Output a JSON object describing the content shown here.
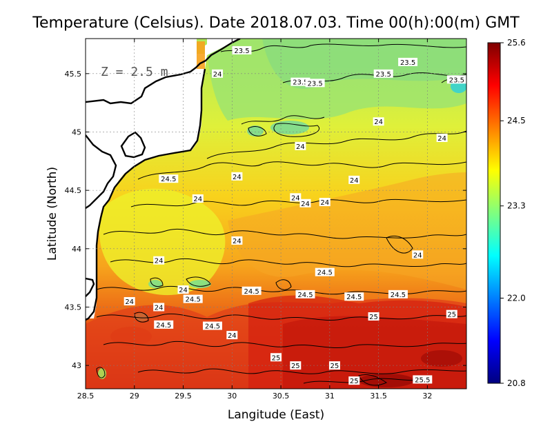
{
  "title": "Temperature (Celsius). Date 2018.07.03. Time 00(h):00(m) GMT",
  "depth_label": "Z = 2.5 m",
  "x_axis": {
    "label": "Langitude (East)",
    "ticks": [
      "28.5",
      "29",
      "29.5",
      "30",
      "30.5",
      "31",
      "31.5",
      "32"
    ],
    "range": [
      28.5,
      32.4
    ]
  },
  "y_axis": {
    "label": "Latitude (North)",
    "ticks": [
      "43",
      "43.5",
      "44",
      "44.5",
      "45",
      "45.5"
    ],
    "range": [
      42.8,
      45.8
    ]
  },
  "colorbar": {
    "ticks": [
      "25.6",
      "24.5",
      "23.3",
      "22.0",
      "20.8"
    ],
    "min": 20.8,
    "max": 25.6,
    "colors": [
      "#00007f",
      "#0000ff",
      "#007fff",
      "#00ffff",
      "#7fff7f",
      "#ffff00",
      "#ff7f00",
      "#ff0000",
      "#7f0000"
    ]
  },
  "contour_labels": [
    {
      "text": "23.5",
      "lon": 30.1,
      "lat": 45.7
    },
    {
      "text": "23.5",
      "lon": 31.8,
      "lat": 45.6
    },
    {
      "text": "23.5",
      "lon": 31.55,
      "lat": 45.5
    },
    {
      "text": "23.5",
      "lon": 30.7,
      "lat": 45.43
    },
    {
      "text": "23.5",
      "lon": 30.85,
      "lat": 45.42
    },
    {
      "text": "23.5",
      "lon": 32.3,
      "lat": 45.45
    },
    {
      "text": "24",
      "lon": 29.85,
      "lat": 45.5
    },
    {
      "text": "24",
      "lon": 31.5,
      "lat": 45.09
    },
    {
      "text": "24",
      "lon": 32.15,
      "lat": 44.95
    },
    {
      "text": "24",
      "lon": 30.7,
      "lat": 44.88
    },
    {
      "text": "24",
      "lon": 30.05,
      "lat": 44.62
    },
    {
      "text": "24",
      "lon": 31.25,
      "lat": 44.59
    },
    {
      "text": "24",
      "lon": 29.65,
      "lat": 44.43
    },
    {
      "text": "24",
      "lon": 30.65,
      "lat": 44.44
    },
    {
      "text": "24",
      "lon": 30.75,
      "lat": 44.39
    },
    {
      "text": "24",
      "lon": 30.95,
      "lat": 44.4
    },
    {
      "text": "24",
      "lon": 30.05,
      "lat": 44.07
    },
    {
      "text": "24",
      "lon": 31.9,
      "lat": 43.95
    },
    {
      "text": "24",
      "lon": 29.25,
      "lat": 43.9
    },
    {
      "text": "24",
      "lon": 29.5,
      "lat": 43.65
    },
    {
      "text": "24",
      "lon": 28.95,
      "lat": 43.55
    },
    {
      "text": "24",
      "lon": 29.25,
      "lat": 43.5
    },
    {
      "text": "24",
      "lon": 30.0,
      "lat": 43.26
    },
    {
      "text": "24.5",
      "lon": 29.35,
      "lat": 44.6
    },
    {
      "text": "24.5",
      "lon": 30.95,
      "lat": 43.8
    },
    {
      "text": "24.5",
      "lon": 30.2,
      "lat": 43.64
    },
    {
      "text": "24.5",
      "lon": 30.75,
      "lat": 43.61
    },
    {
      "text": "24.5",
      "lon": 31.25,
      "lat": 43.59
    },
    {
      "text": "24.5",
      "lon": 31.7,
      "lat": 43.61
    },
    {
      "text": "24.5",
      "lon": 29.6,
      "lat": 43.57
    },
    {
      "text": "24.5",
      "lon": 29.3,
      "lat": 43.35
    },
    {
      "text": "24.5",
      "lon": 29.8,
      "lat": 43.34
    },
    {
      "text": "25",
      "lon": 31.45,
      "lat": 43.42
    },
    {
      "text": "25",
      "lon": 32.25,
      "lat": 43.44
    },
    {
      "text": "25",
      "lon": 30.45,
      "lat": 43.07
    },
    {
      "text": "25",
      "lon": 30.65,
      "lat": 43.0
    },
    {
      "text": "25",
      "lon": 31.05,
      "lat": 43.0
    },
    {
      "text": "25",
      "lon": 31.25,
      "lat": 42.87
    },
    {
      "text": "25.5",
      "lon": 31.95,
      "lat": 42.88
    }
  ]
}
